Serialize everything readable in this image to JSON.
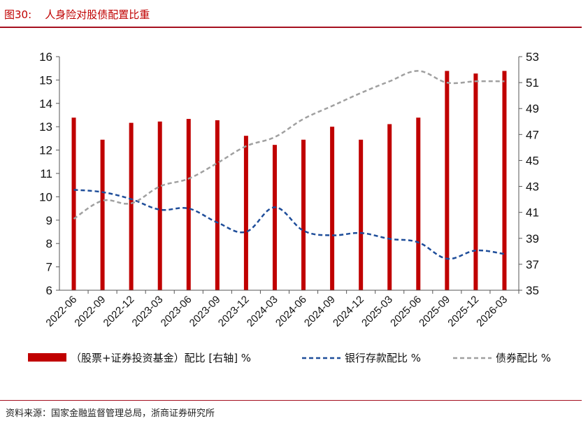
{
  "title": "图30:    人身险对股债配置比重",
  "source": "资料来源：国家金融监督管理总局，浙商证券研究所",
  "colors": {
    "bar": "#c00000",
    "bank": "#1f4e9a",
    "bond": "#a0a0a0",
    "accent": "#a50f1e"
  },
  "chart_data": {
    "type": "bar+line",
    "categories": [
      "2022-06",
      "2022-09",
      "2022-12",
      "2023-03",
      "2023-06",
      "2023-09",
      "2023-12",
      "2024-03",
      "2024-06",
      "2024-09",
      "2024-12",
      "2025-03",
      "2025-06",
      "2025-09",
      "2025-12",
      "2026-03"
    ],
    "left_axis": {
      "min": 6,
      "max": 16,
      "ticks": [
        6,
        7,
        8,
        9,
        10,
        11,
        12,
        13,
        14,
        15,
        16
      ]
    },
    "right_axis": {
      "min": 35,
      "max": 53,
      "ticks": [
        35,
        37,
        39,
        41,
        43,
        45,
        47,
        49,
        51,
        53
      ]
    },
    "series": [
      {
        "name": "（股票+证券投资基金）配比 [右轴] %",
        "type": "bar",
        "axis": "right",
        "values": [
          48.3,
          46.6,
          47.9,
          48.0,
          48.2,
          48.1,
          46.9,
          46.2,
          46.6,
          47.6,
          46.6,
          47.8,
          48.3,
          51.9,
          51.7,
          51.9
        ]
      },
      {
        "name": "银行存款配比 %",
        "type": "line",
        "style": "dashed",
        "axis": "left",
        "values": [
          10.3,
          10.2,
          9.9,
          9.45,
          9.5,
          8.9,
          8.5,
          9.55,
          8.55,
          8.35,
          8.45,
          8.2,
          8.05,
          7.35,
          7.7,
          7.55
        ]
      },
      {
        "name": "债券配比 %",
        "type": "line",
        "style": "dashed",
        "axis": "right",
        "values": [
          40.5,
          41.9,
          41.7,
          43.0,
          43.6,
          44.8,
          46.1,
          46.8,
          48.2,
          49.2,
          50.2,
          51.1,
          51.9,
          51.0,
          51.1,
          51.1
        ]
      }
    ],
    "legend_placement": "bottom"
  }
}
